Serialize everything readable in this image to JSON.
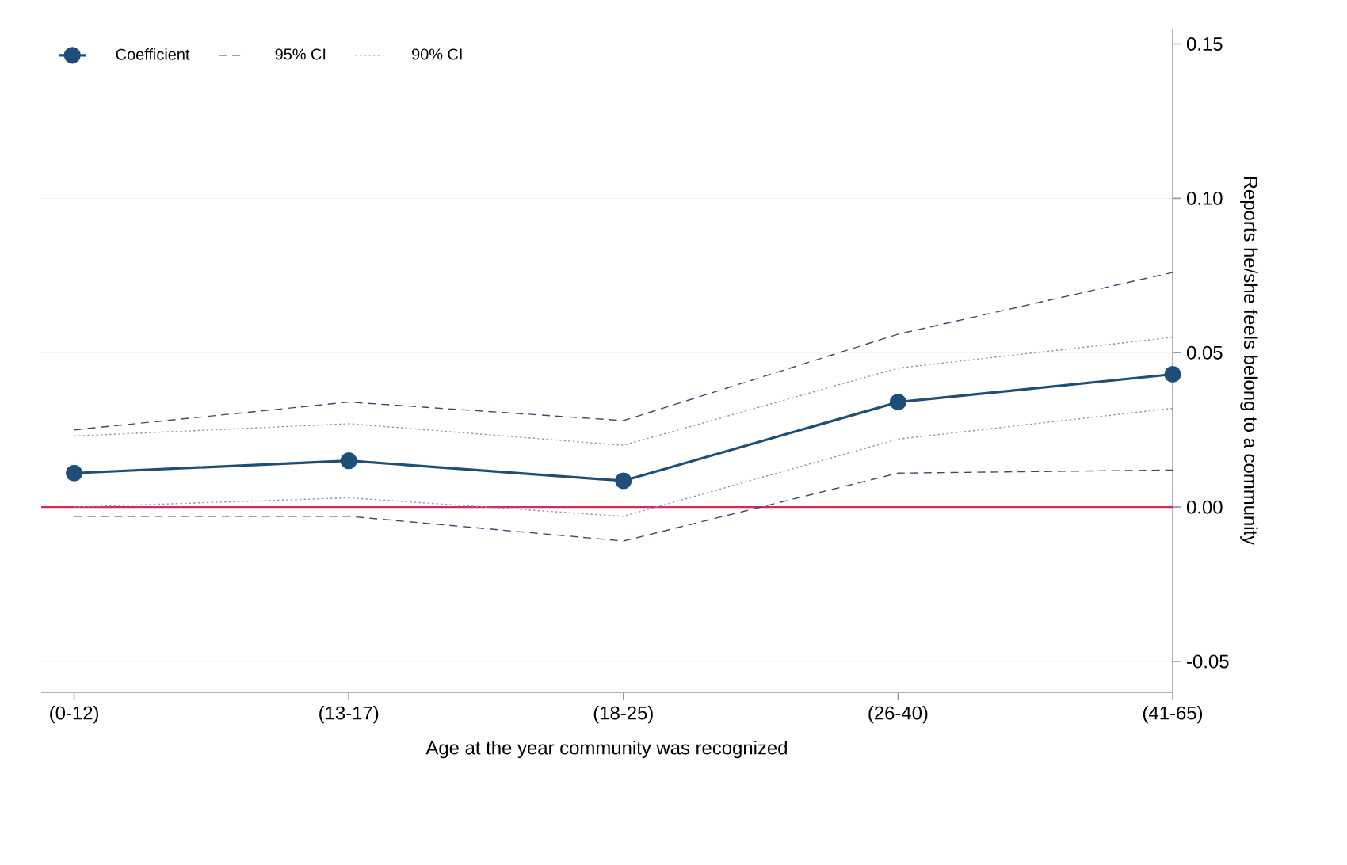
{
  "chart_data": {
    "type": "line",
    "xlabel": "Age at the year community was recognized",
    "ylabel": "Reports he/she feels belong to a community",
    "categories": [
      "(0-12)",
      "(13-17)",
      "(18-25)",
      "(26-40)",
      "(41-65)"
    ],
    "series": [
      {
        "name": "Coefficient",
        "color": "#1f4e79",
        "marker": "circle",
        "line_style": "solid",
        "values": [
          0.011,
          0.015,
          0.0085,
          0.034,
          0.043
        ]
      },
      {
        "name": "95% CI",
        "color": "#3b4a6b",
        "marker": "none",
        "line_style": "dashed",
        "values": [
          0.025,
          0.034,
          0.028,
          0.056,
          0.076
        ]
      },
      {
        "color": "#3b4a6b",
        "marker": "none",
        "line_style": "dashed",
        "values": [
          -0.003,
          -0.003,
          -0.011,
          0.011,
          0.012
        ]
      },
      {
        "name": "90% CI",
        "color": "#8e93aa",
        "marker": "none",
        "line_style": "dotted",
        "values": [
          0.023,
          0.027,
          0.02,
          0.045,
          0.055
        ]
      },
      {
        "color": "#8e93aa",
        "marker": "none",
        "line_style": "dotted",
        "values": [
          0.0,
          0.003,
          -0.003,
          0.022,
          0.032
        ]
      }
    ],
    "ylim": [
      -0.06,
      0.155
    ],
    "yticks": [
      {
        "value": -0.05,
        "label": "-0.05"
      },
      {
        "value": 0,
        "label": "0.00"
      },
      {
        "value": 0.05,
        "label": "0.05"
      },
      {
        "value": 0.1,
        "label": "0.10"
      },
      {
        "value": 0.15,
        "label": "0.15"
      }
    ],
    "ref_lines": [
      {
        "axis": "y",
        "value": 0,
        "color": "#d62a55"
      }
    ],
    "grid": "y",
    "legend": "top left"
  }
}
